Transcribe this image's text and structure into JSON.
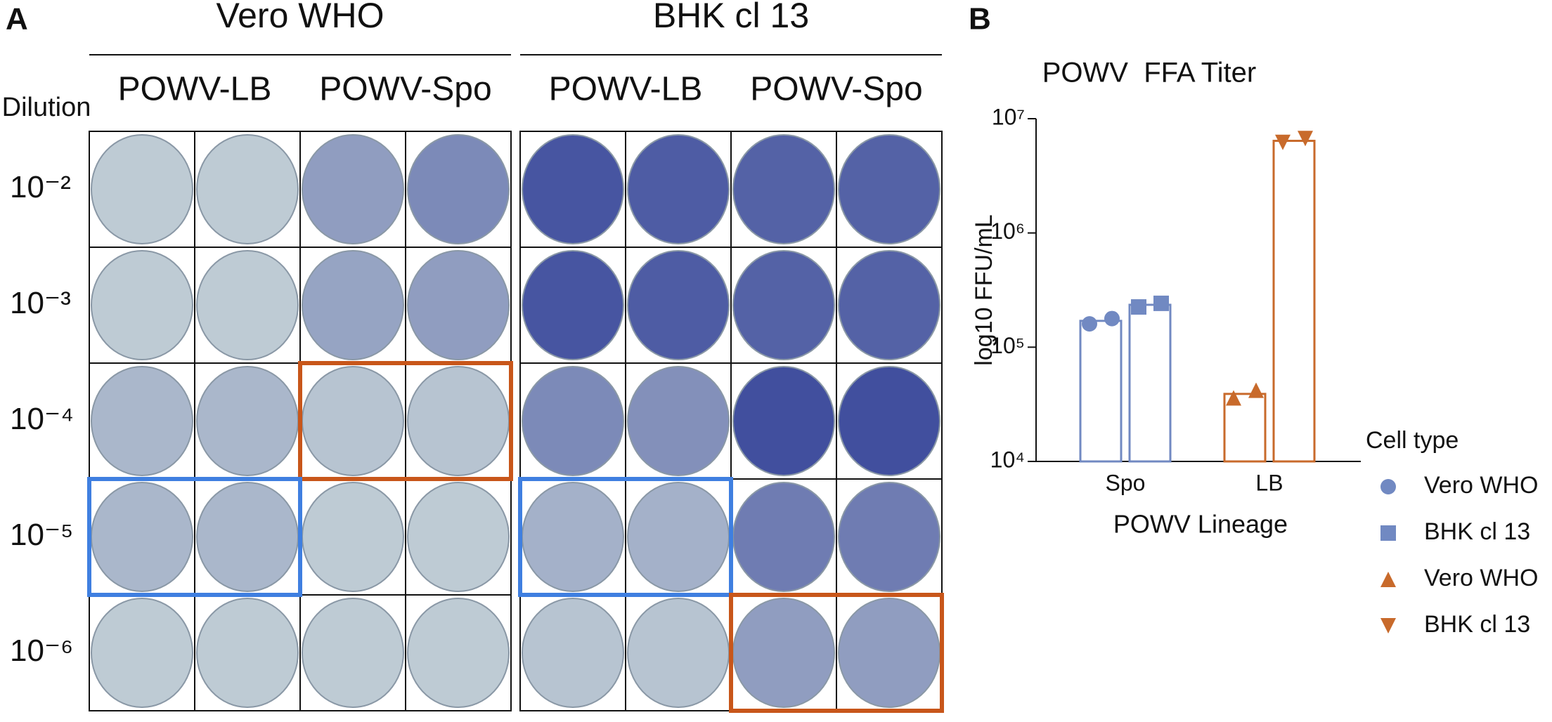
{
  "panel_a": {
    "label": "A",
    "groups": [
      {
        "title": "Vero WHO",
        "columns": [
          "POWV-LB",
          "POWV-Spo"
        ]
      },
      {
        "title": "BHK cl 13",
        "columns": [
          "POWV-LB",
          "POWV-Spo"
        ]
      }
    ],
    "row_header": "Dilution",
    "dilutions": [
      "10⁻²",
      "10⁻³",
      "10⁻⁴",
      "10⁻⁵",
      "10⁻⁶"
    ]
  },
  "panel_b": {
    "label": "B"
  },
  "chart_data": {
    "type": "bar",
    "title": "POWV  FFA Titer",
    "x_label": "POWV Lineage",
    "y_label": "log10 FFU/mL",
    "log_scale": true,
    "categories": [
      "Spo",
      "LB"
    ],
    "ylim": [
      10000,
      10000000
    ],
    "yticks": [
      {
        "value": 10000,
        "label": "10⁴"
      },
      {
        "value": 100000,
        "label": "10⁵"
      },
      {
        "value": 1000000,
        "label": "10⁶"
      },
      {
        "value": 10000000,
        "label": "10⁷"
      }
    ],
    "legend_title": "Cell type",
    "series": [
      {
        "name": "Vero WHO",
        "color": "#7189c2",
        "marker": "circle",
        "values": [
          170000,
          null
        ],
        "points": [
          [
            160000,
            178000
          ],
          null
        ]
      },
      {
        "name": "BHK cl 13",
        "color": "#7189c2",
        "marker": "square",
        "values": [
          235000,
          null
        ],
        "points": [
          [
            225000,
            242000
          ],
          null
        ]
      },
      {
        "name": "Vero WHO",
        "color": "#c86a2b",
        "marker": "triangle",
        "values": [
          null,
          39000
        ],
        "points": [
          null,
          [
            36000,
            42000
          ]
        ]
      },
      {
        "name": "BHK cl 13",
        "color": "#c86a2b",
        "marker": "triangle-down",
        "values": [
          null,
          6400000
        ],
        "points": [
          null,
          [
            6200000,
            6700000
          ]
        ]
      }
    ]
  }
}
